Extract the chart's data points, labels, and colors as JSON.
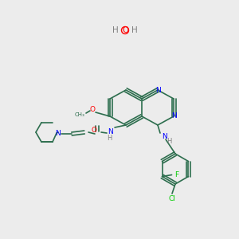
{
  "bg_color": "#ececec",
  "atom_colors": {
    "N": "#0000ff",
    "O": "#ff0000",
    "Cl": "#00cc00",
    "F": "#00cc00",
    "H": "#808080",
    "C": "#2d6e4e"
  },
  "bond_color": "#2d6e4e",
  "water_N_color": "#808080",
  "water_O_color": "#ff0000",
  "figsize": [
    3.0,
    3.0
  ],
  "dpi": 100
}
